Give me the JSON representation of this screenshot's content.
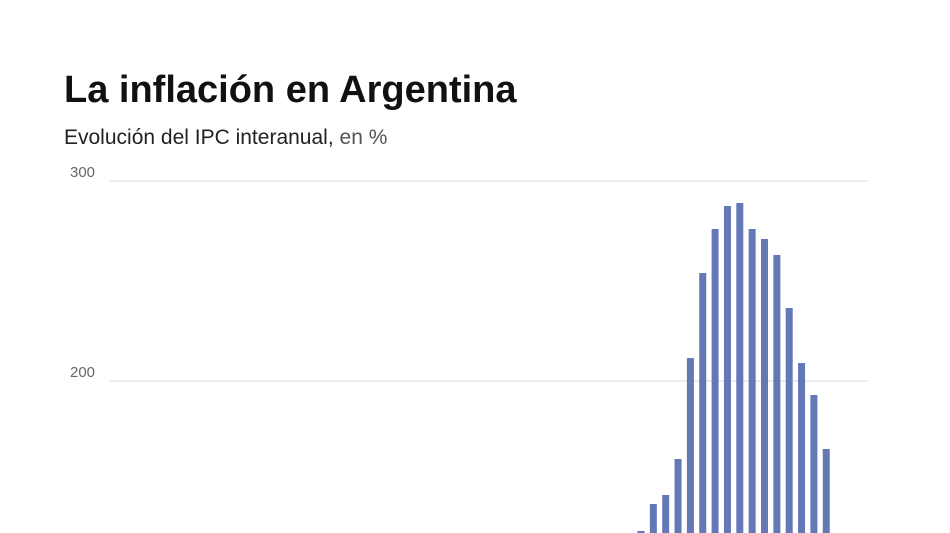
{
  "chart_data": {
    "type": "bar",
    "title": "La inflación en Argentina",
    "subtitle": "Evolución del IPC interanual,",
    "subtitle_unit": "en %",
    "categories": [
      null,
      null,
      null,
      null,
      null,
      null,
      null,
      null,
      null,
      null,
      null,
      null,
      null,
      null,
      null,
      null
    ],
    "values": [
      125,
      138.5,
      143,
      161,
      211.5,
      254,
      276,
      287.5,
      289,
      276,
      271,
      263,
      236.5,
      209,
      193,
      166
    ],
    "color": "#6478b6",
    "ylim": [
      124,
      300
    ],
    "yticks": [
      200,
      300
    ],
    "grid": true
  }
}
